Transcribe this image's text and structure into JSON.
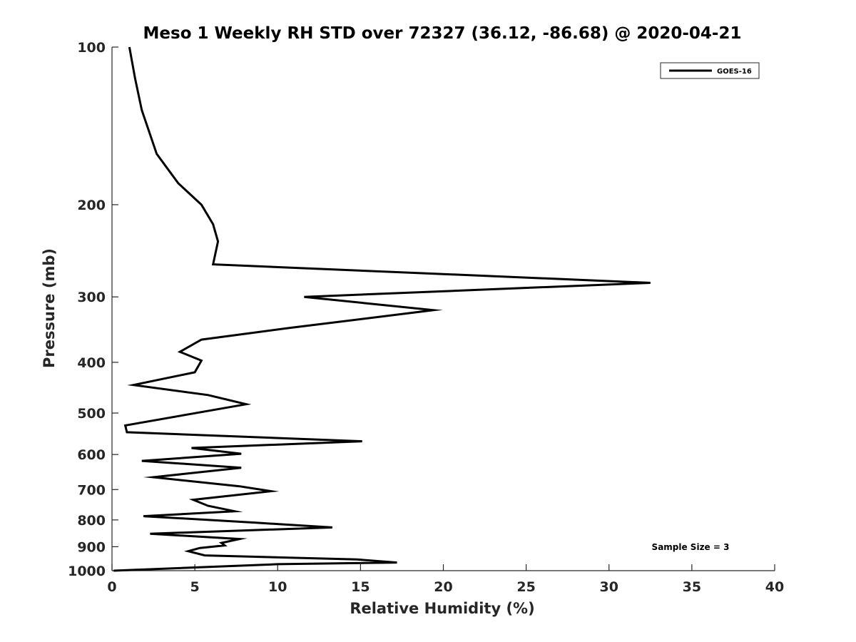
{
  "chart_data": {
    "type": "line",
    "title": "Meso 1 Weekly RH STD over 72327 (36.12, -86.68) @ 2020-04-21",
    "xlabel": "Relative Humidity (%)",
    "ylabel": "Pressure (mb)",
    "xlim": [
      0,
      40
    ],
    "ylim": [
      100,
      1000
    ],
    "yscale": "log",
    "y_reversed": true,
    "grid": false,
    "x_ticks": [
      0,
      5,
      10,
      15,
      20,
      25,
      30,
      35,
      40
    ],
    "y_ticks": [
      100,
      200,
      300,
      400,
      500,
      600,
      700,
      800,
      900,
      1000
    ],
    "legend": {
      "position": "top-right",
      "entries": [
        "GOES-16"
      ]
    },
    "annotation": "Sample Size = 3",
    "series": [
      {
        "name": "GOES-16",
        "color": "#000000",
        "points": [
          [
            1.05,
            100
          ],
          [
            1.4,
            115
          ],
          [
            1.8,
            132
          ],
          [
            2.7,
            160
          ],
          [
            4.0,
            182
          ],
          [
            5.4,
            200
          ],
          [
            6.1,
            218
          ],
          [
            6.4,
            235
          ],
          [
            6.1,
            260
          ],
          [
            32.5,
            282
          ],
          [
            11.6,
            300
          ],
          [
            19.4,
            318
          ],
          [
            10.7,
            344
          ],
          [
            5.4,
            362
          ],
          [
            4.1,
            382
          ],
          [
            5.4,
            397
          ],
          [
            5.0,
            418
          ],
          [
            1.3,
            442
          ],
          [
            5.8,
            462
          ],
          [
            8.1,
            481
          ],
          [
            0.8,
            528
          ],
          [
            0.9,
            544
          ],
          [
            15.1,
            566
          ],
          [
            4.8,
            583
          ],
          [
            7.8,
            598
          ],
          [
            1.8,
            617
          ],
          [
            7.8,
            636
          ],
          [
            2.5,
            663
          ],
          [
            7.7,
            690
          ],
          [
            9.6,
            705
          ],
          [
            4.9,
            732
          ],
          [
            5.8,
            752
          ],
          [
            7.4,
            770
          ],
          [
            1.9,
            787
          ],
          [
            8.7,
            810
          ],
          [
            13.3,
            827
          ],
          [
            2.3,
            850
          ],
          [
            7.7,
            870
          ],
          [
            6.6,
            885
          ],
          [
            6.8,
            895
          ],
          [
            5.3,
            905
          ],
          [
            4.6,
            918
          ],
          [
            5.6,
            935
          ],
          [
            14.8,
            952
          ],
          [
            17.2,
            965
          ],
          [
            10.0,
            972
          ],
          [
            0.1,
            1000
          ]
        ]
      }
    ]
  }
}
